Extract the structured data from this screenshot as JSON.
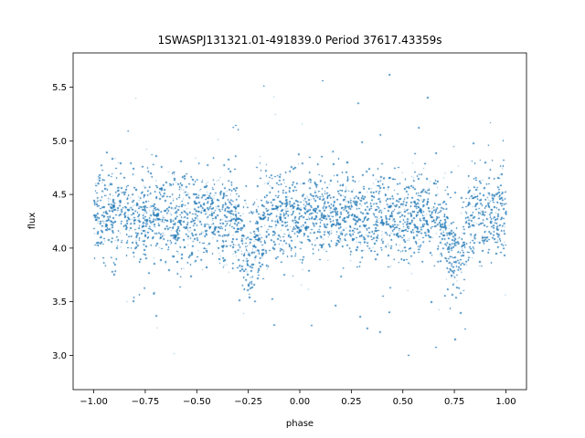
{
  "chart_data": {
    "type": "scatter",
    "title": "1SWASPJ131321.01-491839.0 Period 37617.43359s",
    "xlabel": "phase",
    "ylabel": "flux",
    "xlim": [
      -1.1,
      1.1
    ],
    "ylim": [
      2.68,
      5.82
    ],
    "xticks": [
      -1.0,
      -0.75,
      -0.5,
      -0.25,
      0.0,
      0.25,
      0.5,
      0.75,
      1.0
    ],
    "xtick_labels": [
      "−1.00",
      "−0.75",
      "−0.50",
      "−0.25",
      "0.00",
      "0.25",
      "0.50",
      "0.75",
      "1.00"
    ],
    "yticks": [
      3.0,
      3.5,
      4.0,
      4.5,
      5.0,
      5.5
    ],
    "ytick_labels": [
      "3.0",
      "3.5",
      "4.0",
      "4.5",
      "5.0",
      "5.5"
    ],
    "grid": false,
    "legend": "none",
    "marker_color": "#1f77b4",
    "series": [
      {
        "phase_range": [
          -1.0,
          1.0
        ],
        "baseline_flux": 4.3,
        "scatter_sd": 0.2,
        "dips": [
          {
            "phase": -0.25,
            "flux": 3.9
          },
          {
            "phase": 0.75,
            "flux": 3.9
          }
        ],
        "flux_range": [
          2.8,
          5.7
        ],
        "n_points": 30000
      }
    ]
  }
}
